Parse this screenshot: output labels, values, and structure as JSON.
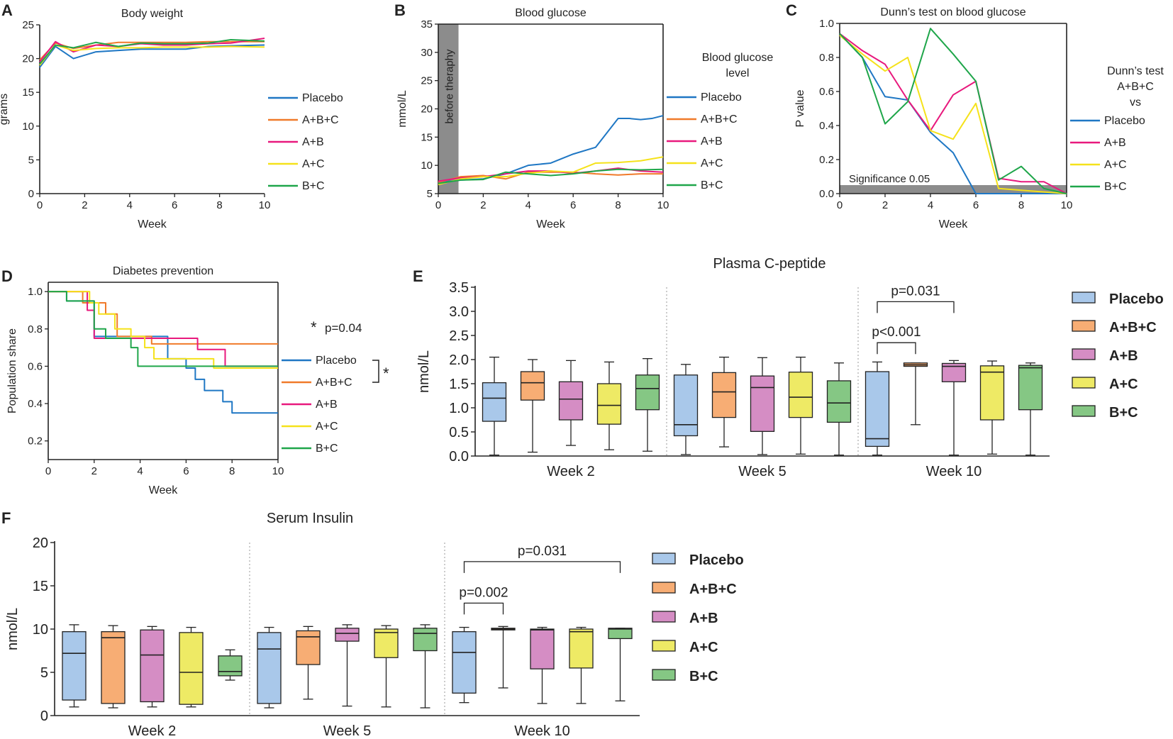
{
  "colors": {
    "placebo": "#1f77c4",
    "abc": "#f07a2a",
    "ab": "#e8197d",
    "ac": "#f5e21b",
    "bc": "#1fa64a",
    "box_placebo": "#a9c8ea",
    "box_abc": "#f7ad74",
    "box_ab": "#d58dc4",
    "box_ac": "#eeea65",
    "box_bc": "#85c784",
    "shade": "#8c8c8c"
  },
  "chart_data": [
    {
      "panel": "A",
      "type": "line",
      "title": "Body weight",
      "xlabel": "Week",
      "ylabel": "grams",
      "xlim": [
        0,
        10
      ],
      "ylim": [
        0,
        25
      ],
      "xticks": [
        "0",
        "2",
        "4",
        "6",
        "8",
        "10"
      ],
      "yticks": [
        "0",
        "5",
        "10",
        "15",
        "20",
        "25"
      ],
      "legend_title": "",
      "series": [
        {
          "name": "Placebo",
          "color_key": "placebo",
          "x": [
            0,
            0.7,
            1.5,
            2.5,
            3.5,
            4.5,
            5.5,
            6.5,
            7.5,
            8.5,
            10
          ],
          "y": [
            18.7,
            21.8,
            20.0,
            21.0,
            21.2,
            21.4,
            21.4,
            21.4,
            21.8,
            21.9,
            22.0
          ]
        },
        {
          "name": "A+B+C",
          "color_key": "abc",
          "x": [
            0,
            0.7,
            1.5,
            2.5,
            3.5,
            4.5,
            5.5,
            6.5,
            7.5,
            8.5,
            10
          ],
          "y": [
            19.8,
            22.3,
            21.5,
            22.0,
            22.4,
            22.4,
            22.4,
            22.4,
            22.5,
            22.5,
            22.5
          ]
        },
        {
          "name": "A+B",
          "color_key": "ab",
          "x": [
            0,
            0.7,
            1.5,
            2.5,
            3.5,
            4.5,
            5.5,
            6.5,
            7.5,
            8.5,
            10
          ],
          "y": [
            19.5,
            22.5,
            21.0,
            22.0,
            21.8,
            22.2,
            22.0,
            22.0,
            22.2,
            22.3,
            23.0
          ]
        },
        {
          "name": "A+C",
          "color_key": "ac",
          "x": [
            0,
            0.7,
            1.5,
            2.5,
            3.5,
            4.5,
            5.5,
            6.5,
            7.5,
            8.5,
            10
          ],
          "y": [
            19.0,
            22.0,
            21.2,
            21.5,
            21.6,
            21.6,
            21.7,
            21.7,
            21.7,
            21.8,
            21.7
          ]
        },
        {
          "name": "B+C",
          "color_key": "bc",
          "x": [
            0,
            0.7,
            1.5,
            2.5,
            3.5,
            4.5,
            5.5,
            6.5,
            7.5,
            8.5,
            10
          ],
          "y": [
            19.2,
            22.0,
            21.6,
            22.4,
            21.8,
            22.3,
            22.2,
            22.2,
            22.3,
            22.8,
            22.6
          ]
        }
      ]
    },
    {
      "panel": "B",
      "type": "line",
      "title": "Blood glucose",
      "xlabel": "Week",
      "ylabel": "mmol/L",
      "xlim": [
        0,
        10
      ],
      "ylim": [
        5,
        35
      ],
      "xticks": [
        "0",
        "2",
        "4",
        "6",
        "8",
        "10"
      ],
      "yticks": [
        "5",
        "10",
        "15",
        "20",
        "25",
        "30",
        "35"
      ],
      "shaded_region": {
        "label": "before theraphy",
        "x_from": 0,
        "x_to": 0.9
      },
      "legend_title": "Blood glucose level",
      "series": [
        {
          "name": "Placebo",
          "color_key": "placebo",
          "x": [
            0,
            1,
            2,
            3,
            4,
            5,
            6,
            7,
            8,
            8.5,
            9,
            9.5,
            10
          ],
          "y": [
            7.0,
            7.4,
            7.6,
            8.5,
            10.0,
            10.4,
            12.0,
            13.2,
            18.3,
            18.3,
            18.1,
            18.3,
            18.8
          ]
        },
        {
          "name": "A+B+C",
          "color_key": "abc",
          "x": [
            0,
            1,
            2,
            3,
            4,
            5,
            6,
            7,
            8,
            9,
            10
          ],
          "y": [
            7.0,
            8.0,
            8.2,
            7.6,
            8.8,
            8.8,
            8.8,
            8.5,
            8.3,
            8.5,
            8.5
          ]
        },
        {
          "name": "A+B",
          "color_key": "ab",
          "x": [
            0,
            1,
            2,
            3,
            4,
            5,
            6,
            7,
            8,
            9,
            10
          ],
          "y": [
            7.2,
            7.8,
            8.0,
            8.5,
            9.0,
            9.0,
            8.6,
            9.0,
            9.5,
            9.0,
            8.8
          ]
        },
        {
          "name": "A+C",
          "color_key": "ac",
          "x": [
            0,
            1,
            2,
            3,
            4,
            5,
            6,
            7,
            8,
            9,
            10
          ],
          "y": [
            6.6,
            7.6,
            8.0,
            8.0,
            8.6,
            9.0,
            8.8,
            10.4,
            10.5,
            10.8,
            11.5
          ]
        },
        {
          "name": "B+C",
          "color_key": "bc",
          "x": [
            0,
            1,
            2,
            3,
            4,
            5,
            6,
            7,
            8,
            9,
            10
          ],
          "y": [
            6.8,
            7.4,
            7.5,
            8.8,
            8.5,
            8.2,
            8.5,
            9.0,
            9.3,
            9.2,
            9.3
          ]
        }
      ]
    },
    {
      "panel": "C",
      "type": "line",
      "title": "Dunn’s test on blood glucose",
      "xlabel": "Week",
      "ylabel": "P value",
      "xlim": [
        0,
        10
      ],
      "ylim": [
        0,
        1.0
      ],
      "xticks": [
        "0",
        "2",
        "4",
        "6",
        "8",
        "10"
      ],
      "yticks": [
        "0.0",
        "0.2",
        "0.4",
        "0.6",
        "0.8",
        "1.0"
      ],
      "significance_band": {
        "label": "Significance 0.05",
        "y_to": 0.05
      },
      "legend_title": "Dunn’s test A+B+C vs",
      "series": [
        {
          "name": "Placebo",
          "color_key": "placebo",
          "x": [
            0,
            1,
            2,
            3,
            4,
            5,
            6,
            7,
            8,
            9,
            10
          ],
          "y": [
            0.94,
            0.8,
            0.57,
            0.55,
            0.36,
            0.24,
            0.0,
            0.0,
            0.0,
            0.0,
            0.0
          ]
        },
        {
          "name": "A+B",
          "color_key": "ab",
          "x": [
            0,
            1,
            2,
            3,
            4,
            5,
            6,
            7,
            8,
            9,
            10
          ],
          "y": [
            0.94,
            0.84,
            0.76,
            0.55,
            0.37,
            0.58,
            0.66,
            0.09,
            0.07,
            0.07,
            0.0
          ]
        },
        {
          "name": "A+C",
          "color_key": "ac",
          "x": [
            0,
            1,
            2,
            3,
            4,
            5,
            6,
            7,
            8,
            9,
            10
          ],
          "y": [
            0.93,
            0.82,
            0.72,
            0.8,
            0.37,
            0.32,
            0.53,
            0.03,
            0.02,
            0.01,
            0.0
          ]
        },
        {
          "name": "B+C",
          "color_key": "bc",
          "x": [
            0,
            1,
            2,
            3,
            4,
            5,
            6,
            7,
            8,
            9,
            10
          ],
          "y": [
            0.94,
            0.8,
            0.41,
            0.54,
            0.97,
            0.82,
            0.66,
            0.08,
            0.16,
            0.03,
            0.0
          ]
        }
      ]
    },
    {
      "panel": "D",
      "type": "step",
      "title": "Diabetes prevention",
      "xlabel": "Week",
      "ylabel": "Population share",
      "xlim": [
        0,
        10
      ],
      "ylim": [
        0.1,
        1.05
      ],
      "xticks": [
        "0",
        "2",
        "4",
        "6",
        "8",
        "10"
      ],
      "yticks": [
        "0.2",
        "0.4",
        "0.6",
        "0.8",
        "1.0"
      ],
      "annotation": "p=0.04",
      "bracket_mark": "*",
      "legend_title": "",
      "series": [
        {
          "name": "Placebo",
          "color_key": "placebo",
          "x": [
            0,
            0.8,
            2.0,
            2.7,
            5.2,
            6.0,
            6.4,
            6.8,
            7.6,
            8.0,
            10
          ],
          "y": [
            1.0,
            0.95,
            0.76,
            0.76,
            0.64,
            0.59,
            0.53,
            0.47,
            0.41,
            0.35,
            0.35
          ]
        },
        {
          "name": "A+B+C",
          "color_key": "abc",
          "x": [
            0,
            1.5,
            2.0,
            2.5,
            3.0,
            4.5,
            10
          ],
          "y": [
            1.0,
            0.94,
            0.94,
            0.88,
            0.76,
            0.72,
            0.72
          ]
        },
        {
          "name": "A+B",
          "color_key": "ab",
          "x": [
            0,
            1.7,
            2.0,
            2.5,
            2.8,
            6.5,
            7.7,
            10
          ],
          "y": [
            1.0,
            0.9,
            0.75,
            0.75,
            0.75,
            0.69,
            0.6,
            0.6
          ]
        },
        {
          "name": "A+C",
          "color_key": "ac",
          "x": [
            0,
            1.8,
            2.2,
            2.9,
            3.6,
            4.2,
            4.6,
            7.2,
            8.0,
            10
          ],
          "y": [
            1.0,
            0.94,
            0.88,
            0.8,
            0.76,
            0.7,
            0.64,
            0.59,
            0.59,
            0.59
          ]
        },
        {
          "name": "B+C",
          "color_key": "bc",
          "x": [
            0,
            0.8,
            2.0,
            2.5,
            3.6,
            3.9,
            10
          ],
          "y": [
            1.0,
            0.95,
            0.8,
            0.75,
            0.7,
            0.6,
            0.6
          ]
        }
      ]
    },
    {
      "panel": "E",
      "type": "box",
      "title": "Plasma C-peptide",
      "ylabel": "nmol/L",
      "ylim": [
        0,
        3.5
      ],
      "yticks": [
        "0.0",
        "0.5",
        "1.0",
        "1.5",
        "2.0",
        "2.5",
        "3.0",
        "3.5"
      ],
      "groups": [
        "Week 2",
        "Week 5",
        "Week 10"
      ],
      "legend": [
        "Placebo",
        "A+B+C",
        "A+B",
        "A+C",
        "B+C"
      ],
      "boxes": [
        [
          {
            "min": 0.02,
            "q1": 0.72,
            "median": 1.2,
            "q3": 1.52,
            "max": 2.05
          },
          {
            "min": 0.08,
            "q1": 1.16,
            "median": 1.52,
            "q3": 1.75,
            "max": 2.0
          },
          {
            "min": 0.22,
            "q1": 0.75,
            "median": 1.18,
            "q3": 1.54,
            "max": 1.98
          },
          {
            "min": 0.13,
            "q1": 0.66,
            "median": 1.05,
            "q3": 1.5,
            "max": 1.95
          },
          {
            "min": 0.1,
            "q1": 0.96,
            "median": 1.4,
            "q3": 1.68,
            "max": 2.02
          }
        ],
        [
          {
            "min": 0.03,
            "q1": 0.42,
            "median": 0.65,
            "q3": 1.68,
            "max": 1.9
          },
          {
            "min": 0.19,
            "q1": 0.8,
            "median": 1.33,
            "q3": 1.73,
            "max": 2.05
          },
          {
            "min": 0.03,
            "q1": 0.51,
            "median": 1.42,
            "q3": 1.66,
            "max": 2.04
          },
          {
            "min": 0.04,
            "q1": 0.8,
            "median": 1.22,
            "q3": 1.74,
            "max": 2.05
          },
          {
            "min": 0.02,
            "q1": 0.7,
            "median": 1.1,
            "q3": 1.56,
            "max": 1.93
          }
        ],
        [
          {
            "min": 0.02,
            "q1": 0.2,
            "median": 0.36,
            "q3": 1.75,
            "max": 1.95
          },
          {
            "min": 0.65,
            "q1": 1.86,
            "median": 1.89,
            "q3": 1.93,
            "max": 1.93
          },
          {
            "min": 0.02,
            "q1": 1.54,
            "median": 1.86,
            "q3": 1.92,
            "max": 1.98
          },
          {
            "min": 0.04,
            "q1": 0.75,
            "median": 1.74,
            "q3": 1.87,
            "max": 1.97
          },
          {
            "min": 0.02,
            "q1": 0.96,
            "median": 1.83,
            "q3": 1.88,
            "max": 1.93
          }
        ]
      ],
      "comparisons": [
        {
          "label": "p<0.001",
          "group": 2,
          "from": 0,
          "to": 1,
          "level": 2.35
        },
        {
          "label": "p=0.031",
          "group": 2,
          "from": 0,
          "to": 2,
          "level": 3.2
        }
      ]
    },
    {
      "panel": "F",
      "type": "box",
      "title": "Serum Insulin",
      "ylabel": "nmol/L",
      "ylim": [
        0,
        20
      ],
      "yticks": [
        "0",
        "5",
        "10",
        "15",
        "20"
      ],
      "groups": [
        "Week 2",
        "Week 5",
        "Week 10"
      ],
      "legend": [
        "Placebo",
        "A+B+C",
        "A+B",
        "A+C",
        "B+C"
      ],
      "boxes": [
        [
          {
            "min": 1.0,
            "q1": 1.8,
            "median": 7.2,
            "q3": 9.7,
            "max": 10.5
          },
          {
            "min": 0.9,
            "q1": 1.4,
            "median": 9.0,
            "q3": 9.7,
            "max": 10.4
          },
          {
            "min": 1.0,
            "q1": 1.6,
            "median": 7.0,
            "q3": 9.9,
            "max": 10.3
          },
          {
            "min": 1.0,
            "q1": 1.3,
            "median": 5.0,
            "q3": 9.6,
            "max": 10.2
          },
          {
            "min": 4.1,
            "q1": 4.6,
            "median": 5.1,
            "q3": 6.9,
            "max": 7.6
          }
        ],
        [
          {
            "min": 0.9,
            "q1": 1.4,
            "median": 7.7,
            "q3": 9.6,
            "max": 10.2
          },
          {
            "min": 1.9,
            "q1": 5.9,
            "median": 9.1,
            "q3": 9.8,
            "max": 10.3
          },
          {
            "min": 1.1,
            "q1": 8.6,
            "median": 9.5,
            "q3": 10.1,
            "max": 10.5
          },
          {
            "min": 1.0,
            "q1": 6.7,
            "median": 9.6,
            "q3": 10.0,
            "max": 10.4
          },
          {
            "min": 0.9,
            "q1": 7.5,
            "median": 9.5,
            "q3": 10.1,
            "max": 10.5
          }
        ],
        [
          {
            "min": 1.5,
            "q1": 2.6,
            "median": 7.3,
            "q3": 9.7,
            "max": 10.2
          },
          {
            "min": 3.2,
            "q1": 9.9,
            "median": 10.0,
            "q3": 10.1,
            "max": 10.3
          },
          {
            "min": 1.4,
            "q1": 5.4,
            "median": 9.9,
            "q3": 10.0,
            "max": 10.2
          },
          {
            "min": 1.4,
            "q1": 5.5,
            "median": 9.7,
            "q3": 10.0,
            "max": 10.2
          },
          {
            "min": 1.7,
            "q1": 8.9,
            "median": 10.0,
            "q3": 10.1,
            "max": 10.1
          }
        ]
      ],
      "comparisons": [
        {
          "label": "p=0.002",
          "group": 2,
          "from": 0,
          "to": 1,
          "level": 13.0
        },
        {
          "label": "p=0.031",
          "group": 2,
          "from": 0,
          "to": 4,
          "level": 17.8
        }
      ]
    }
  ]
}
